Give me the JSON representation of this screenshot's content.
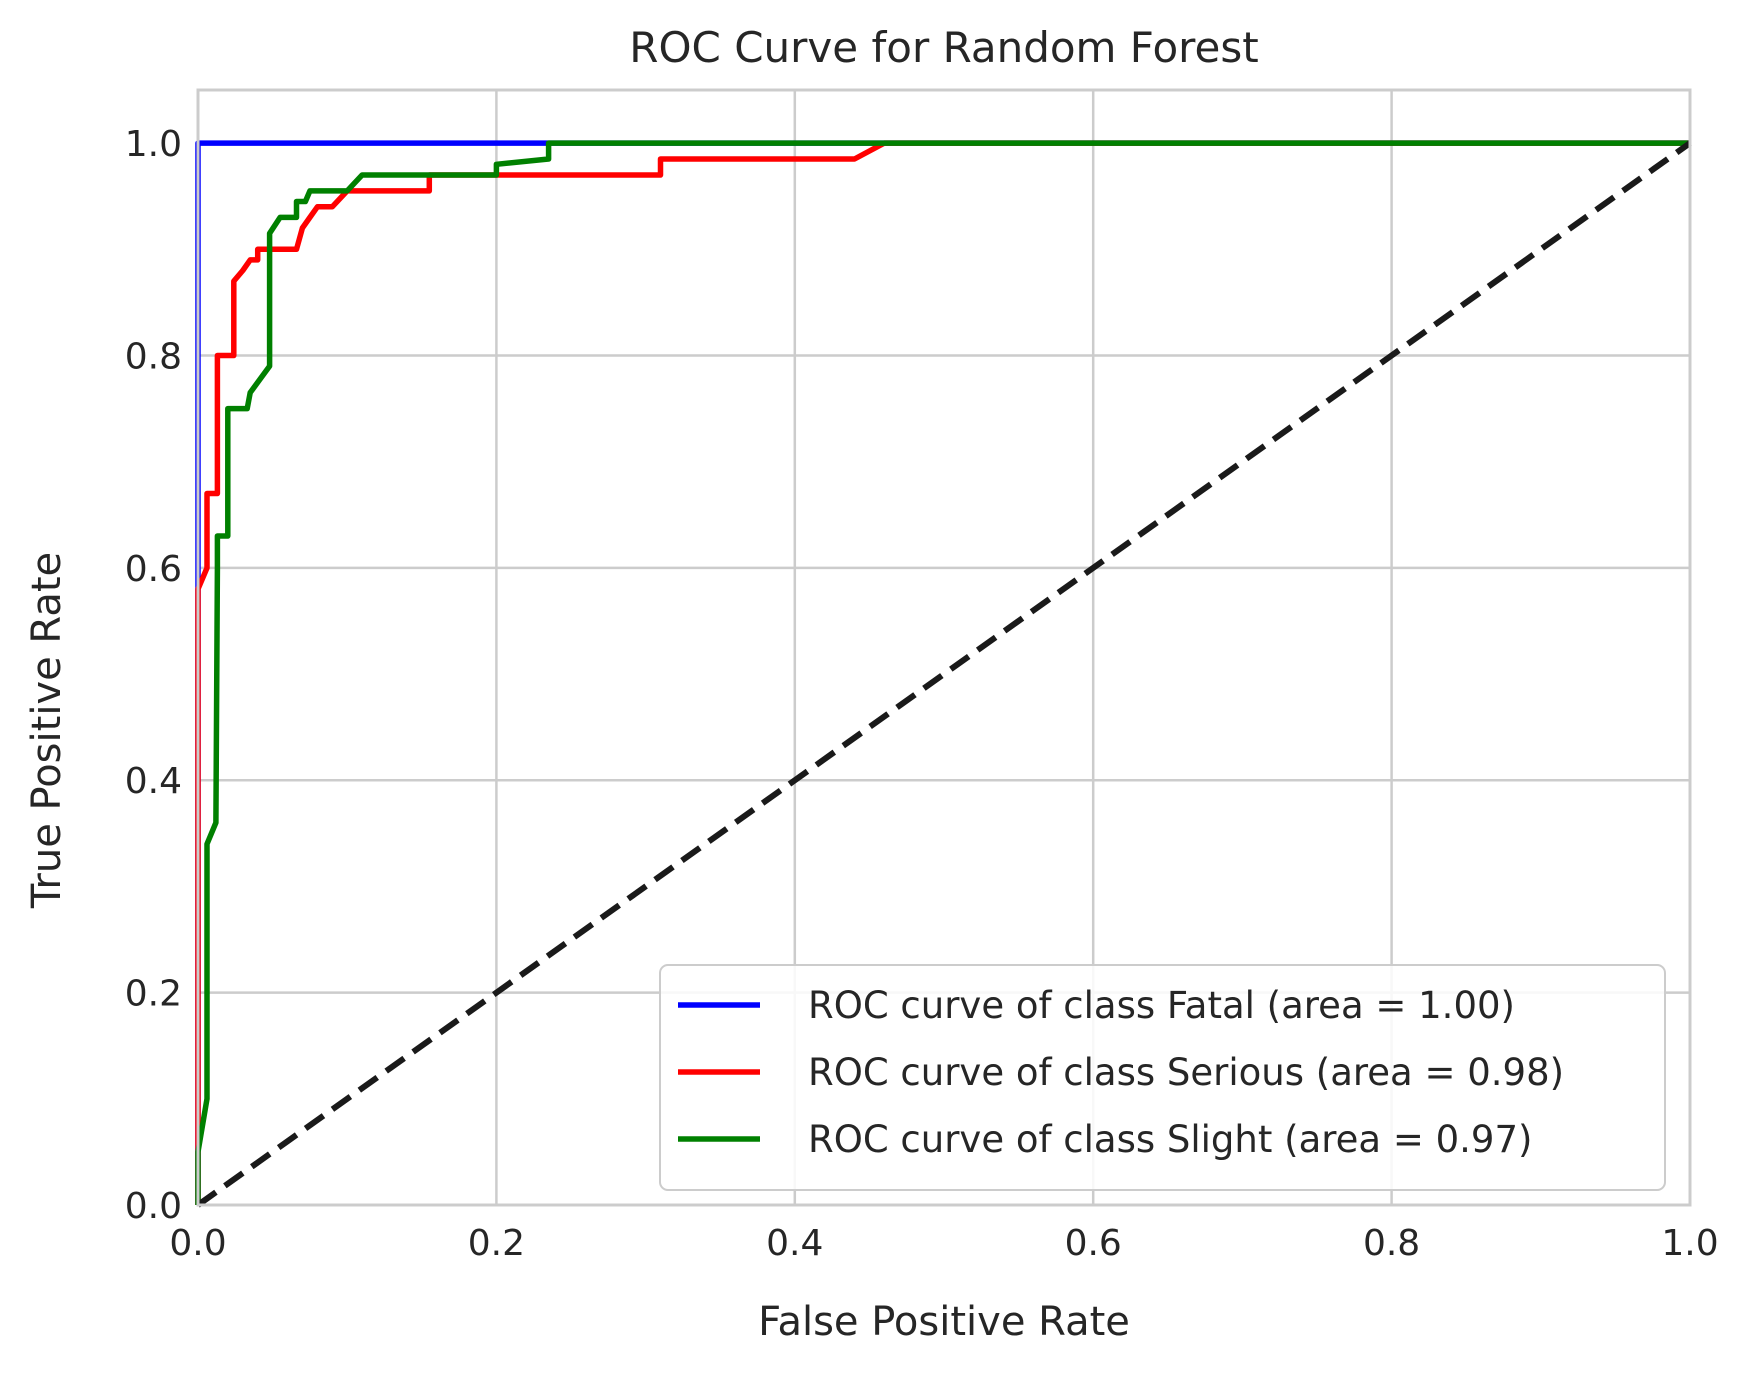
{
  "chart_data": {
    "type": "line",
    "title": "ROC Curve for Random Forest",
    "xlabel": "False Positive Rate",
    "ylabel": "True Positive Rate",
    "xlim": [
      0.0,
      1.0
    ],
    "ylim": [
      0.0,
      1.05
    ],
    "xticks": [
      "0.0",
      "0.2",
      "0.4",
      "0.6",
      "0.8",
      "1.0"
    ],
    "yticks": [
      "0.0",
      "0.2",
      "0.4",
      "0.6",
      "0.8",
      "1.0"
    ],
    "grid": true,
    "legend_position": "lower-right",
    "series": [
      {
        "name": "ROC curve of class Fatal (area = 1.00)",
        "color": "#0000ff",
        "x": [
          0.0,
          0.0,
          0.23,
          1.0
        ],
        "y": [
          0.0,
          1.0,
          1.0,
          1.0
        ]
      },
      {
        "name": "ROC curve of class Serious (area = 0.98)",
        "color": "#ff0000",
        "x": [
          0.0,
          0.0,
          0.006,
          0.006,
          0.013,
          0.013,
          0.024,
          0.024,
          0.03,
          0.035,
          0.04,
          0.04,
          0.066,
          0.07,
          0.075,
          0.08,
          0.09,
          0.1,
          0.11,
          0.155,
          0.155,
          0.31,
          0.31,
          0.44,
          0.46,
          1.0
        ],
        "y": [
          0.0,
          0.58,
          0.6,
          0.67,
          0.67,
          0.8,
          0.8,
          0.87,
          0.88,
          0.89,
          0.89,
          0.9,
          0.9,
          0.92,
          0.93,
          0.94,
          0.94,
          0.955,
          0.955,
          0.955,
          0.97,
          0.97,
          0.985,
          0.985,
          1.0,
          1.0
        ]
      },
      {
        "name": "ROC curve of class Slight (area = 0.97)",
        "color": "#008000",
        "x": [
          0.0,
          0.0,
          0.006,
          0.006,
          0.012,
          0.013,
          0.013,
          0.02,
          0.02,
          0.033,
          0.035,
          0.048,
          0.048,
          0.055,
          0.066,
          0.066,
          0.072,
          0.075,
          0.1,
          0.11,
          0.2,
          0.2,
          0.235,
          0.235,
          1.0
        ],
        "y": [
          0.0,
          0.05,
          0.1,
          0.34,
          0.36,
          0.6,
          0.63,
          0.63,
          0.75,
          0.75,
          0.765,
          0.79,
          0.915,
          0.93,
          0.93,
          0.945,
          0.945,
          0.955,
          0.955,
          0.97,
          0.97,
          0.98,
          0.985,
          1.0,
          1.0
        ]
      },
      {
        "name": "",
        "color": "#1a1a1a",
        "dashed": true,
        "x": [
          0.0,
          1.0
        ],
        "y": [
          0.0,
          1.0
        ]
      }
    ]
  }
}
